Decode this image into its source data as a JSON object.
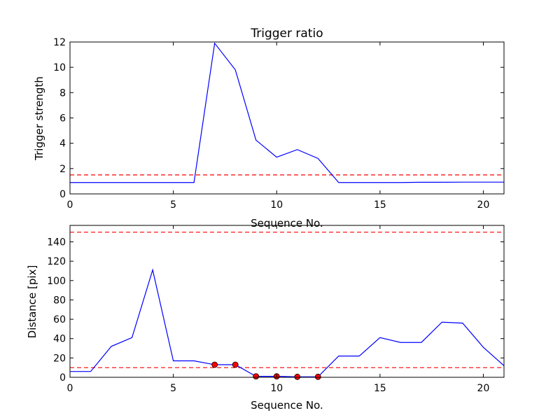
{
  "chart_data": [
    {
      "type": "line",
      "title": "Trigger ratio",
      "xlabel": "Sequence No.",
      "ylabel": "Trigger strength",
      "xlim": [
        0,
        21
      ],
      "ylim": [
        0,
        12
      ],
      "xticks": [
        0,
        5,
        10,
        15,
        20
      ],
      "yticks": [
        0,
        2,
        4,
        6,
        8,
        10,
        12
      ],
      "grid": false,
      "series": [
        {
          "color": "#0000ff",
          "style": "solid",
          "x": [
            0,
            1,
            2,
            3,
            4,
            5,
            6,
            7,
            8,
            9,
            10,
            11,
            12,
            13,
            14,
            15,
            16,
            17,
            18,
            19,
            20,
            21
          ],
          "y": [
            0.9,
            0.9,
            0.9,
            0.9,
            0.9,
            0.9,
            0.9,
            11.9,
            9.8,
            4.25,
            2.9,
            3.5,
            2.8,
            0.9,
            0.9,
            0.9,
            0.9,
            0.92,
            0.92,
            0.93,
            0.93,
            0.93
          ]
        }
      ],
      "hlines": [
        {
          "y": 1.5,
          "color": "#ff0000",
          "style": "dashed"
        }
      ]
    },
    {
      "type": "line",
      "title": "",
      "xlabel": "Sequence No.",
      "ylabel": "Distance [pix]",
      "xlim": [
        0,
        21
      ],
      "ylim": [
        0,
        157
      ],
      "xticks": [
        0,
        5,
        10,
        15,
        20
      ],
      "yticks": [
        0,
        20,
        40,
        60,
        80,
        100,
        120,
        140
      ],
      "grid": false,
      "series": [
        {
          "color": "#0000ff",
          "style": "solid",
          "x": [
            0,
            1,
            2,
            3,
            4,
            5,
            6,
            7,
            8,
            9,
            10,
            11,
            12,
            13,
            14,
            15,
            16,
            17,
            18,
            19,
            20,
            21
          ],
          "y": [
            6,
            6,
            32,
            41,
            111,
            17,
            17,
            13,
            13,
            1,
            1,
            0.5,
            0.5,
            22,
            22,
            41,
            36,
            36,
            57,
            56,
            31,
            12
          ]
        }
      ],
      "markers": {
        "color": "#ff0000",
        "x": [
          7,
          8,
          9,
          10,
          11,
          12
        ],
        "y": [
          13,
          13,
          1,
          1,
          0.5,
          0.5
        ]
      },
      "hlines": [
        {
          "y": 150,
          "color": "#ff0000",
          "style": "dashed"
        },
        {
          "y": 10,
          "color": "#ff0000",
          "style": "dashed"
        }
      ]
    }
  ]
}
